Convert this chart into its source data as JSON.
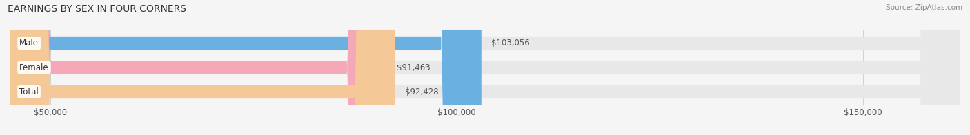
{
  "title": "EARNINGS BY SEX IN FOUR CORNERS",
  "source": "Source: ZipAtlas.com",
  "categories": [
    "Male",
    "Female",
    "Total"
  ],
  "values": [
    103056,
    91463,
    92428
  ],
  "bar_colors": [
    "#6ab0e0",
    "#f4a8b8",
    "#f5c898"
  ],
  "bar_bg_color": "#e8e8e8",
  "label_value_color": "#555555",
  "xlim": [
    45000,
    162000
  ],
  "xticks": [
    50000,
    100000,
    150000
  ],
  "xtick_labels": [
    "$50,000",
    "$100,000",
    "$150,000"
  ],
  "background_color": "#f5f5f5",
  "title_fontsize": 10,
  "tick_fontsize": 8.5,
  "value_fontsize": 8.5,
  "label_fontsize": 8.5
}
